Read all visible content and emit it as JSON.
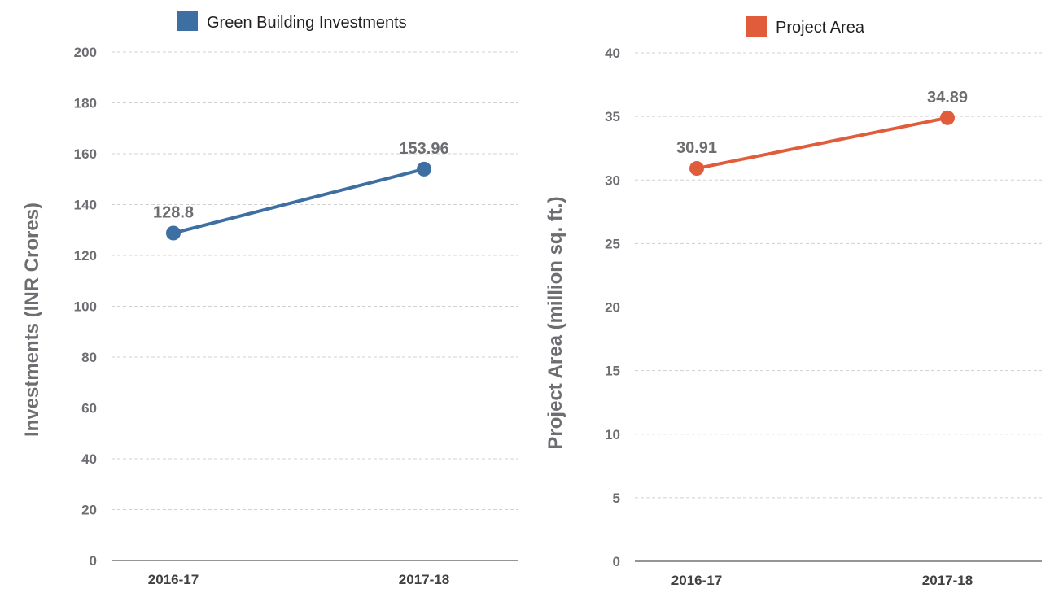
{
  "chart_data": [
    {
      "type": "line",
      "categories": [
        "2016-17",
        "2017-18"
      ],
      "series": [
        {
          "name": "Green Building Investments",
          "values": [
            128.8,
            153.96
          ],
          "color": "#3e6fa3"
        }
      ],
      "data_labels": [
        "128.8",
        "153.96"
      ],
      "ylabel": "Investments (INR Crores)",
      "xlabel": "",
      "ylim": [
        0,
        200
      ],
      "yticks": [
        "0",
        "20",
        "40",
        "60",
        "80",
        "100",
        "120",
        "140",
        "160",
        "180",
        "200"
      ],
      "grid": true,
      "legend_position": "top"
    },
    {
      "type": "line",
      "categories": [
        "2016-17",
        "2017-18"
      ],
      "series": [
        {
          "name": "Project Area",
          "values": [
            30.91,
            34.89
          ],
          "color": "#e05c3a"
        }
      ],
      "data_labels": [
        "30.91",
        "34.89"
      ],
      "ylabel": "Project Area (million sq. ft.)",
      "xlabel": "",
      "ylim": [
        0,
        40
      ],
      "yticks": [
        "0",
        "5",
        "10",
        "15",
        "20",
        "25",
        "30",
        "35",
        "40"
      ],
      "grid": true,
      "legend_position": "top"
    }
  ]
}
